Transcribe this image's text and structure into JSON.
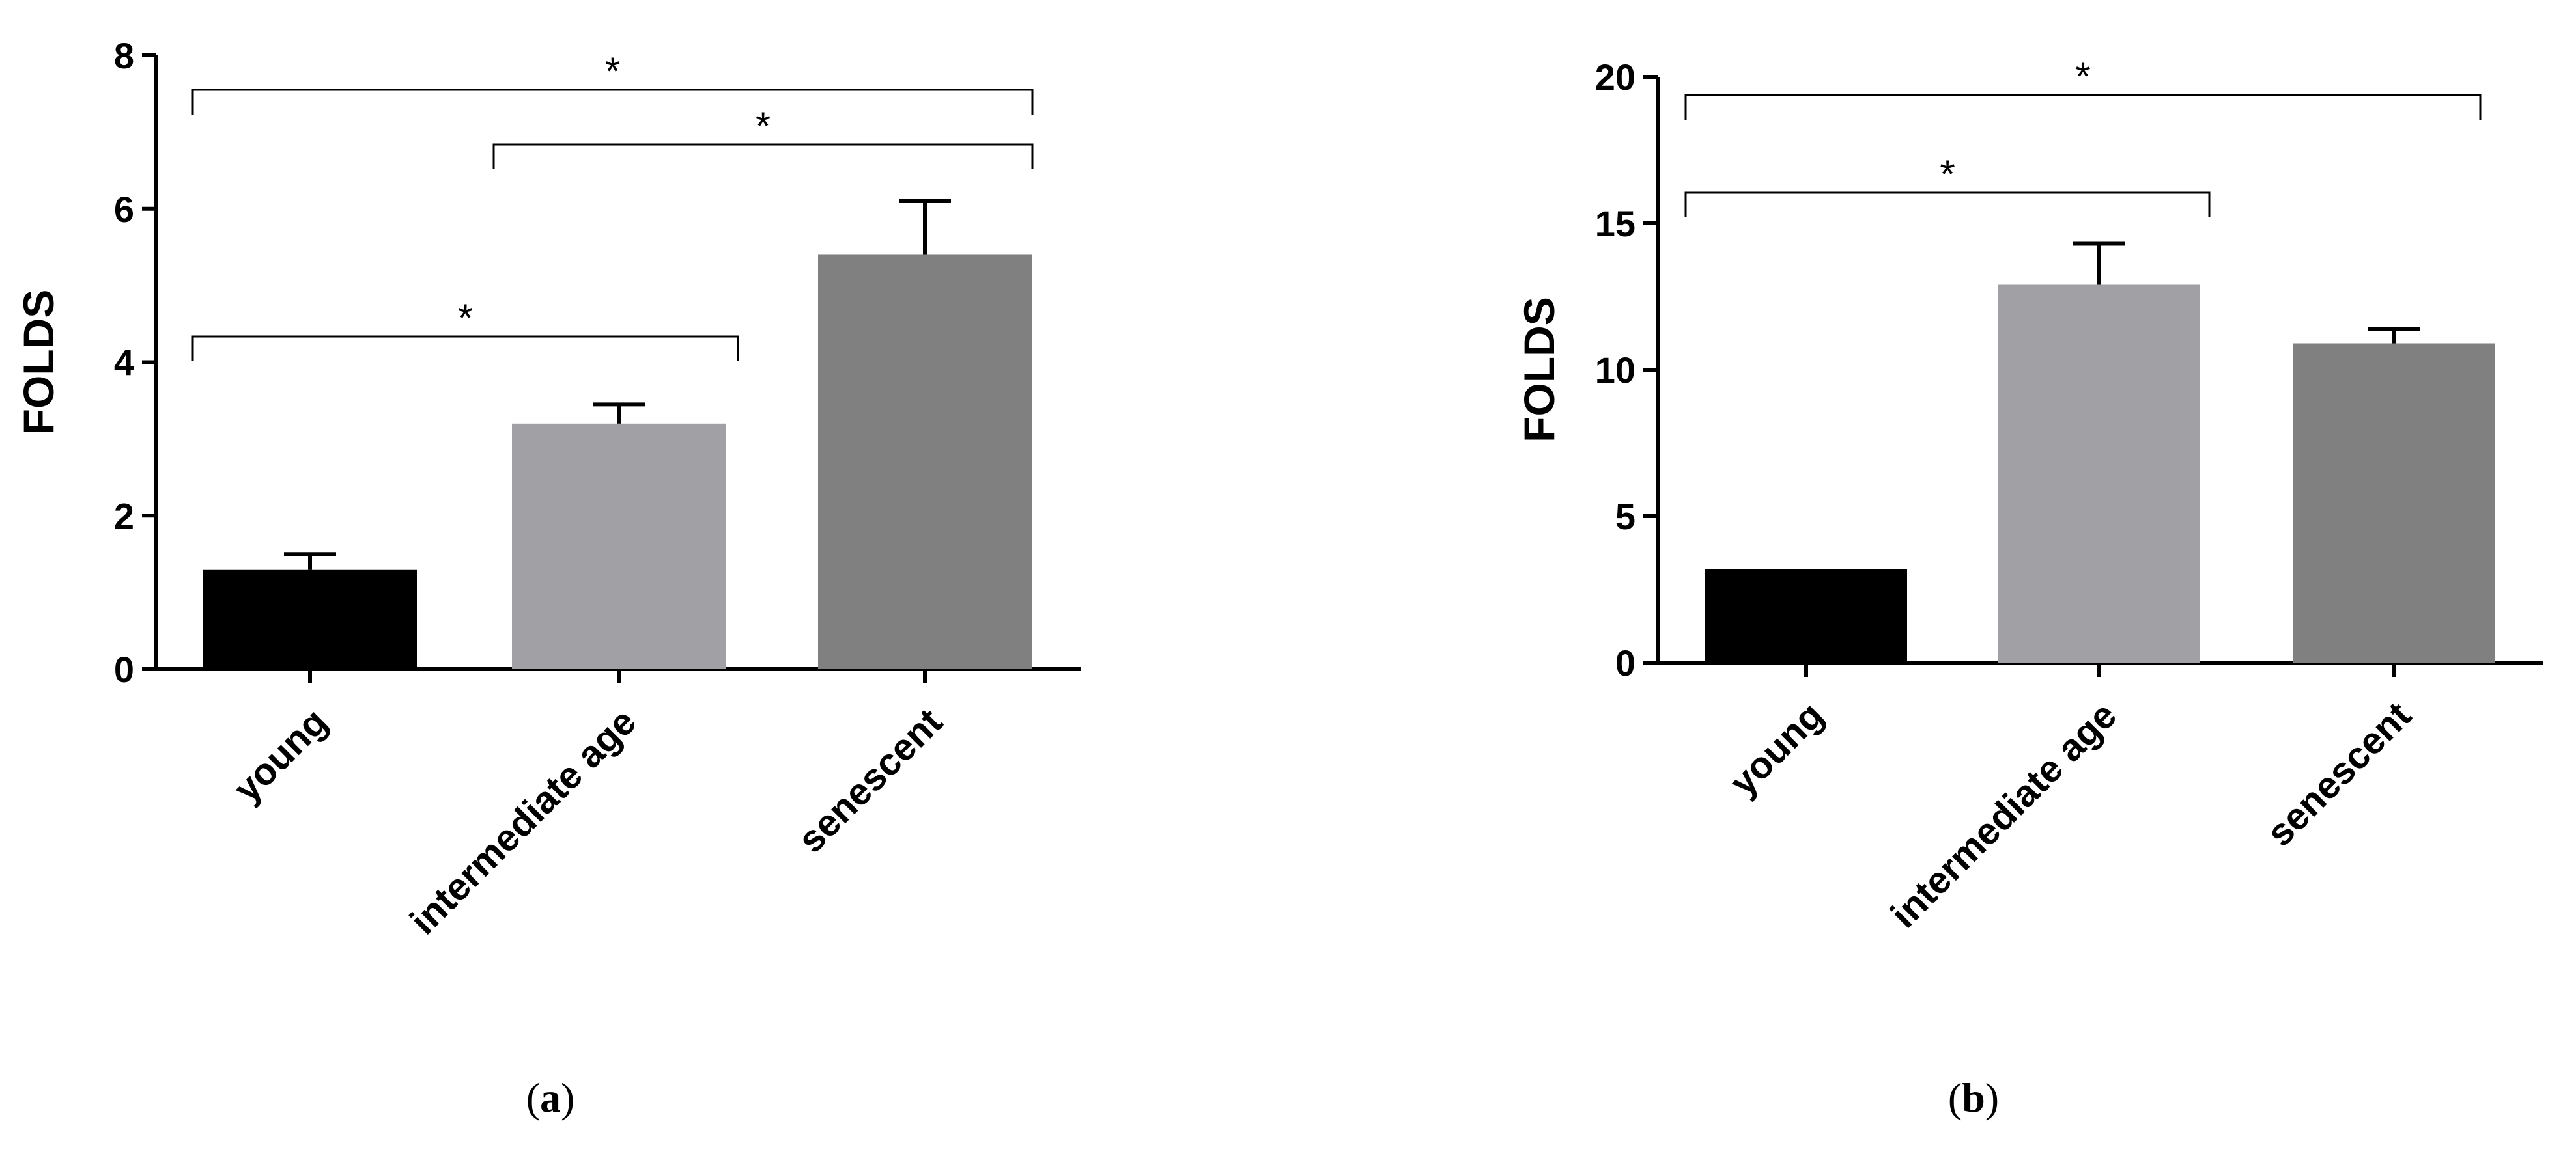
{
  "chart_data": [
    {
      "type": "bar",
      "panel_label": "a",
      "categories": [
        "young",
        "intermediate age",
        "senescent"
      ],
      "values": [
        1.3,
        3.2,
        5.4
      ],
      "errors": [
        0.2,
        0.25,
        0.7
      ],
      "bar_colors": [
        "#000000",
        "#a1a1a5",
        "#808080"
      ],
      "ylabel": "FOLDS",
      "ylim": [
        0,
        8
      ],
      "yticks": [
        "0",
        "2",
        "4",
        "6",
        "8"
      ],
      "significance": [
        {
          "from": 0,
          "to": 2,
          "label": "*"
        },
        {
          "from": 1,
          "to": 2,
          "label": "*"
        },
        {
          "from": 0,
          "to": 1,
          "label": "*"
        }
      ]
    },
    {
      "type": "bar",
      "panel_label": "b",
      "categories": [
        "young",
        "intermediate age",
        "senescent"
      ],
      "values": [
        3.2,
        12.9,
        10.9
      ],
      "errors": [
        0,
        1.4,
        0.5
      ],
      "bar_colors": [
        "#000000",
        "#a1a1a5",
        "#808080"
      ],
      "ylabel": "FOLDS",
      "ylim": [
        0,
        20
      ],
      "yticks": [
        "0",
        "5",
        "10",
        "15",
        "20"
      ],
      "significance": [
        {
          "from": 0,
          "to": 2,
          "label": "*"
        },
        {
          "from": 0,
          "to": 1,
          "label": "*"
        }
      ]
    }
  ]
}
